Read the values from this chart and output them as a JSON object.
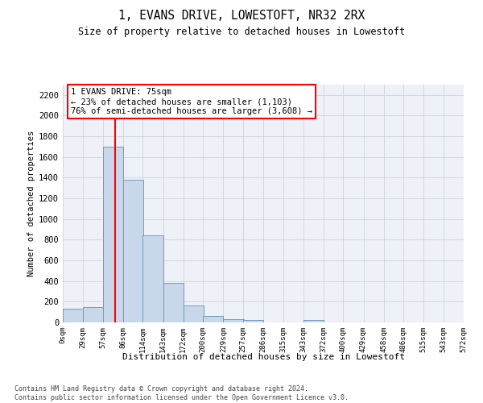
{
  "title": "1, EVANS DRIVE, LOWESTOFT, NR32 2RX",
  "subtitle": "Size of property relative to detached houses in Lowestoft",
  "xlabel": "Distribution of detached houses by size in Lowestoft",
  "ylabel": "Number of detached properties",
  "bar_color": "#c8d8ea",
  "bar_edge_color": "#7799bb",
  "grid_color": "#c8ccd8",
  "background_color": "#eef1f8",
  "vline_color": "red",
  "vline_x": 75,
  "annotation_text": "1 EVANS DRIVE: 75sqm\n← 23% of detached houses are smaller (1,103)\n76% of semi-detached houses are larger (3,608) →",
  "bins_start": [
    0,
    29,
    57,
    86,
    114,
    143,
    172,
    200,
    229,
    257,
    286,
    315,
    343,
    372,
    400,
    429,
    458,
    486,
    515,
    543
  ],
  "bin_width": 29,
  "counts": [
    130,
    150,
    1700,
    1380,
    840,
    380,
    160,
    65,
    30,
    25,
    0,
    0,
    25,
    0,
    0,
    0,
    0,
    0,
    0,
    0
  ],
  "ylim": [
    0,
    2300
  ],
  "yticks": [
    0,
    200,
    400,
    600,
    800,
    1000,
    1200,
    1400,
    1600,
    1800,
    2000,
    2200
  ],
  "tick_labels": [
    "0sqm",
    "29sqm",
    "57sqm",
    "86sqm",
    "114sqm",
    "143sqm",
    "172sqm",
    "200sqm",
    "229sqm",
    "257sqm",
    "286sqm",
    "315sqm",
    "343sqm",
    "372sqm",
    "400sqm",
    "429sqm",
    "458sqm",
    "486sqm",
    "515sqm",
    "543sqm",
    "572sqm"
  ],
  "tick_positions": [
    0,
    29,
    57,
    86,
    114,
    143,
    172,
    200,
    229,
    257,
    286,
    315,
    343,
    372,
    400,
    429,
    458,
    486,
    515,
    543,
    572
  ],
  "xlim": [
    0,
    572
  ],
  "footer_text": "Contains HM Land Registry data © Crown copyright and database right 2024.\nContains public sector information licensed under the Open Government Licence v3.0."
}
